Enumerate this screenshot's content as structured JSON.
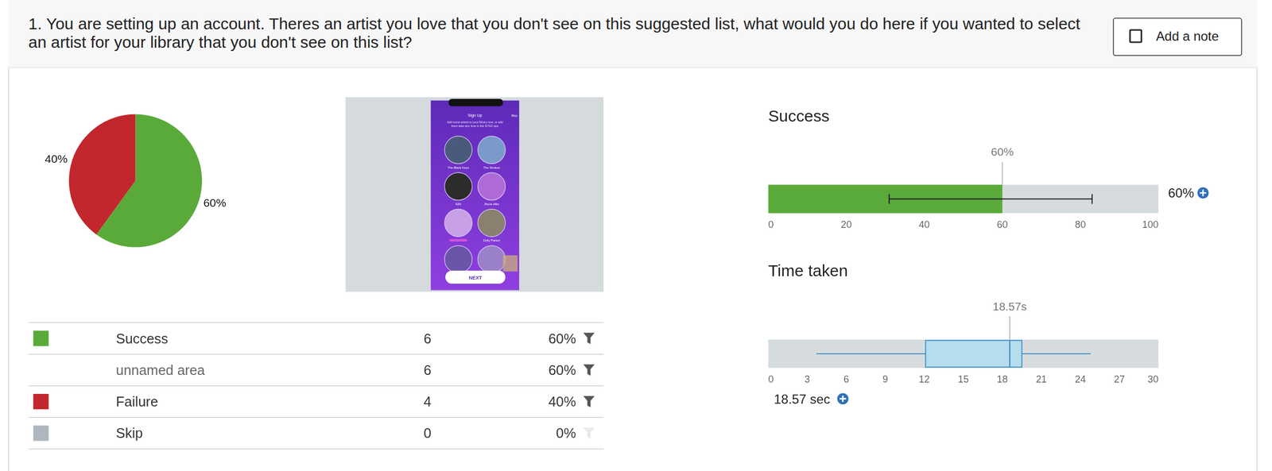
{
  "header": {
    "question": "1. You are setting up an account. Theres an artist you love that you don't see on this suggested list, what would you do here if you wanted to select an artist for your library that you don't see on this list?",
    "button": "Add a note"
  },
  "thumbnail": {
    "title": "Sign Up",
    "skip": "Skip",
    "subtitle": "Add some artists to your library now, or add them later any time in the SYNC app",
    "artists": [
      "The Black Keys",
      "The Strokes",
      "SZA",
      "Jhene Aiko",
      null,
      "Dolly Parton"
    ],
    "button": "NEXT"
  },
  "table": {
    "rows": [
      {
        "label": "Success",
        "count": "6",
        "percent": "60%",
        "color": "#5aaa3a"
      },
      {
        "label": "unnamed area",
        "count": "6",
        "percent": "60%"
      },
      {
        "label": "Failure",
        "count": "4",
        "percent": "40%",
        "color": "#c1272d"
      },
      {
        "label": "Skip",
        "count": "0",
        "percent": "0%",
        "color": "#b0b6bd"
      }
    ]
  },
  "chart_data": [
    {
      "type": "pie",
      "categories": [
        "Success",
        "Failure"
      ],
      "values": [
        60,
        40
      ],
      "value_labels": [
        "60%",
        "40%"
      ],
      "colors": [
        "#5aaa3a",
        "#c1272d"
      ],
      "data_labels": true
    },
    {
      "type": "bar",
      "orientation": "horizontal",
      "title": "Success",
      "categories": [
        null
      ],
      "values": [
        60
      ],
      "value_labels": [
        "60%"
      ],
      "summary_label": "60%",
      "error_low": [
        31
      ],
      "error_high": [
        83
      ],
      "xlim": [
        0,
        100
      ],
      "xticks": [
        0,
        20,
        40,
        60,
        80,
        100
      ],
      "color": "#5aaa3a"
    },
    {
      "type": "box",
      "orientation": "horizontal",
      "title": "Time taken",
      "whisker_low": 3.7,
      "q1": 12.1,
      "median": 18.57,
      "q3": 19.5,
      "whisker_high": 24.8,
      "median_label": "18.57s",
      "summary_label": "18.57 sec",
      "xlim": [
        0,
        30
      ],
      "xticks": [
        0,
        3,
        6,
        9,
        12,
        15,
        18,
        21,
        24,
        27,
        30
      ],
      "color": "#3c8dc5"
    }
  ]
}
